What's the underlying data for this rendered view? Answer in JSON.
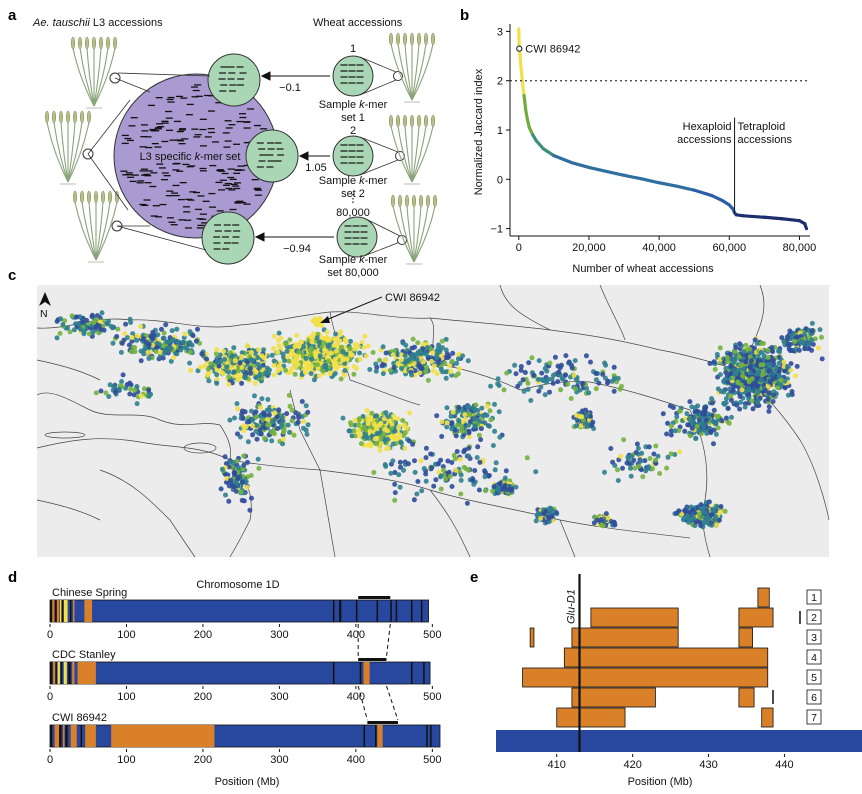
{
  "panel_a": {
    "letter": "a",
    "left_title_italic": "Ae. tauschii",
    "left_title_rest": " L3 accessions",
    "right_title": "Wheat accessions",
    "center_label_pre": "L3 specific ",
    "center_label_italic": "k",
    "center_label_post": "-mer set",
    "samples": [
      {
        "index": "1",
        "score": "−0.1",
        "line1_pre": "Sample ",
        "line1_italic": "k",
        "line1_post": "-mer",
        "line2": "set 1"
      },
      {
        "index": "2",
        "score": "1.05",
        "line1_pre": "Sample ",
        "line1_italic": "k",
        "line1_post": "-mer",
        "line2": "set 2"
      },
      {
        "index": "80,000",
        "score": "−0.94",
        "line1_pre": "Sample ",
        "line1_italic": "k",
        "line1_post": "-mer",
        "line2": "set 80,000"
      }
    ],
    "ellipsis": "⋮",
    "colors": {
      "big_circle": "#a99ad1",
      "small_circle": "#a9d7b6"
    }
  },
  "panel_b": {
    "letter": "b",
    "ylabel": "Normalized Jaccard index",
    "xlabel": "Number of wheat accessions",
    "annotation": "CWI 86942",
    "hexaploid_label": [
      "Hexaploid",
      "accessions"
    ],
    "tetraploid_label": [
      "Tetraploid",
      "accessions"
    ],
    "yticks": [
      "3",
      "2",
      "1",
      "0",
      "−1"
    ],
    "xticks": [
      "0",
      "20,000",
      "40,000",
      "60,000",
      "80,000"
    ]
  },
  "chart_data": [
    {
      "type": "line",
      "panel": "b",
      "xlabel": "Number of wheat accessions",
      "ylabel": "Normalized Jaccard index",
      "xlim": [
        -2500,
        83000
      ],
      "ylim": [
        -1.15,
        3.15
      ],
      "threshold_y": 2,
      "divider_x": 61500,
      "highlight_point": {
        "x": 150,
        "y": 2.65,
        "label": "CWI 86942"
      },
      "curve": {
        "x": [
          0,
          150,
          300,
          600,
          1000,
          1500,
          2000,
          2500,
          3000,
          4000,
          5000,
          7000,
          10000,
          15000,
          20000,
          25000,
          30000,
          35000,
          40000,
          45000,
          50000,
          55000,
          58000,
          60000,
          61000,
          61500,
          62000,
          64000,
          70000,
          75000,
          80000,
          81500,
          82000
        ],
        "y": [
          3.05,
          2.65,
          2.55,
          2.3,
          2.0,
          1.7,
          1.4,
          1.2,
          1.05,
          0.9,
          0.78,
          0.62,
          0.48,
          0.34,
          0.24,
          0.16,
          0.08,
          0.01,
          -0.07,
          -0.14,
          -0.22,
          -0.33,
          -0.43,
          -0.52,
          -0.6,
          -0.68,
          -0.72,
          -0.74,
          -0.77,
          -0.8,
          -0.84,
          -0.9,
          -1.0
        ]
      },
      "colors": {
        "high": "#f2e04a",
        "mid": "#6fae3c",
        "low": "#2b5ea7",
        "tail": "#1e2f6f"
      }
    },
    {
      "type": "heatmap",
      "panel": "d",
      "title": "Chromosome 1D",
      "xlabel": "Position (Mb)",
      "xlim": [
        0,
        510
      ],
      "xticks": [
        0,
        100,
        200,
        300,
        400,
        500
      ],
      "tracks": [
        {
          "name": "Chinese Spring",
          "length": 495,
          "segments": [
            [
              0,
              3,
              "black"
            ],
            [
              3,
              6,
              "orange"
            ],
            [
              6,
              9,
              "black"
            ],
            [
              9,
              12,
              "orange"
            ],
            [
              13,
              15,
              "yellow"
            ],
            [
              15,
              18,
              "black"
            ],
            [
              18,
              23,
              "yellow"
            ],
            [
              26,
              28,
              "black"
            ],
            [
              30,
              32,
              "orange"
            ],
            [
              45,
              55,
              "orange"
            ],
            [
              370,
              372,
              "black"
            ],
            [
              378,
              381,
              "black"
            ],
            [
              400,
              402,
              "black"
            ],
            [
              427,
              429,
              "black"
            ],
            [
              445,
              447,
              "black"
            ],
            [
              452,
              454,
              "black"
            ],
            [
              472,
              474,
              "black"
            ],
            [
              485,
              487,
              "black"
            ]
          ],
          "highlight": [
            403,
            445
          ]
        },
        {
          "name": "CDC Stanley",
          "length": 497,
          "segments": [
            [
              0,
              3,
              "black"
            ],
            [
              4,
              7,
              "orange"
            ],
            [
              7,
              9,
              "black"
            ],
            [
              10,
              13,
              "yellow"
            ],
            [
              14,
              16,
              "black"
            ],
            [
              18,
              22,
              "yellow"
            ],
            [
              24,
              27,
              "black"
            ],
            [
              29,
              32,
              "orange"
            ],
            [
              36,
              60,
              "orange"
            ],
            [
              370,
              372,
              "black"
            ],
            [
              405,
              407,
              "black"
            ],
            [
              410,
              418,
              "orange"
            ],
            [
              472,
              474,
              "black"
            ],
            [
              488,
              490,
              "black"
            ]
          ],
          "highlight": [
            403,
            440
          ]
        },
        {
          "name": "CWI 86942",
          "length": 510,
          "segments": [
            [
              0,
              3,
              "black"
            ],
            [
              6,
              12,
              "orange"
            ],
            [
              12,
              15,
              "black"
            ],
            [
              17,
              19,
              "orange"
            ],
            [
              20,
              23,
              "black"
            ],
            [
              27,
              35,
              "orange"
            ],
            [
              40,
              42,
              "black"
            ],
            [
              46,
              60,
              "orange"
            ],
            [
              80,
              215,
              "orange"
            ],
            [
              410,
              412,
              "black"
            ],
            [
              425,
              427,
              "black"
            ],
            [
              428,
              435,
              "orange"
            ],
            [
              492,
              494,
              "black"
            ],
            [
              497,
              499,
              "black"
            ]
          ],
          "highlight": [
            415,
            455
          ]
        }
      ],
      "colors": {
        "base": "#2848a0",
        "orange": "#d98028",
        "yellow": "#f2e04a",
        "black": "#111111"
      }
    },
    {
      "type": "bar",
      "panel": "e",
      "xlabel": "Position (Mb)",
      "xlim": [
        402,
        446
      ],
      "xticks": [
        410,
        420,
        430,
        440
      ],
      "marker": {
        "x": 413,
        "label": "Glu-D1"
      },
      "rows": [
        {
          "label": "1",
          "blocks": [
            [
              436.5,
              438
            ]
          ]
        },
        {
          "label": "2",
          "blocks": [
            [
              414.5,
              426
            ],
            [
              434,
              438.5
            ]
          ]
        },
        {
          "label": "3",
          "blocks": [
            [
              406.5,
              407
            ],
            [
              412,
              426
            ],
            [
              434,
              435.8
            ]
          ]
        },
        {
          "label": "4",
          "blocks": [
            [
              411,
              437.8
            ]
          ]
        },
        {
          "label": "5",
          "blocks": [
            [
              405.5,
              437.8
            ]
          ]
        },
        {
          "label": "6",
          "blocks": [
            [
              412,
              423
            ],
            [
              434,
              436
            ]
          ]
        },
        {
          "label": "7",
          "blocks": [
            [
              410,
              419
            ],
            [
              437,
              438.5
            ]
          ]
        }
      ],
      "base_track": [
        402,
        446
      ],
      "colors": {
        "block": "#d98028",
        "base": "#2848a0",
        "marker": "#111111"
      }
    }
  ],
  "panel_c": {
    "letter": "c",
    "annotation": "CWI 86942",
    "north": "N",
    "colors": {
      "sea": "#ebebeb",
      "land": "#ebebeb",
      "border": "#555555",
      "yellow": "#f2e04a",
      "green": "#74b33e",
      "teal": "#2f7f8f",
      "blue": "#2d4b9a"
    }
  },
  "panel_d": {
    "letter": "d",
    "title": "Chromosome 1D",
    "xlabel": "Position (Mb)"
  },
  "panel_e": {
    "letter": "e",
    "marker_label": "Glu-D1",
    "xlabel": "Position (Mb)"
  }
}
